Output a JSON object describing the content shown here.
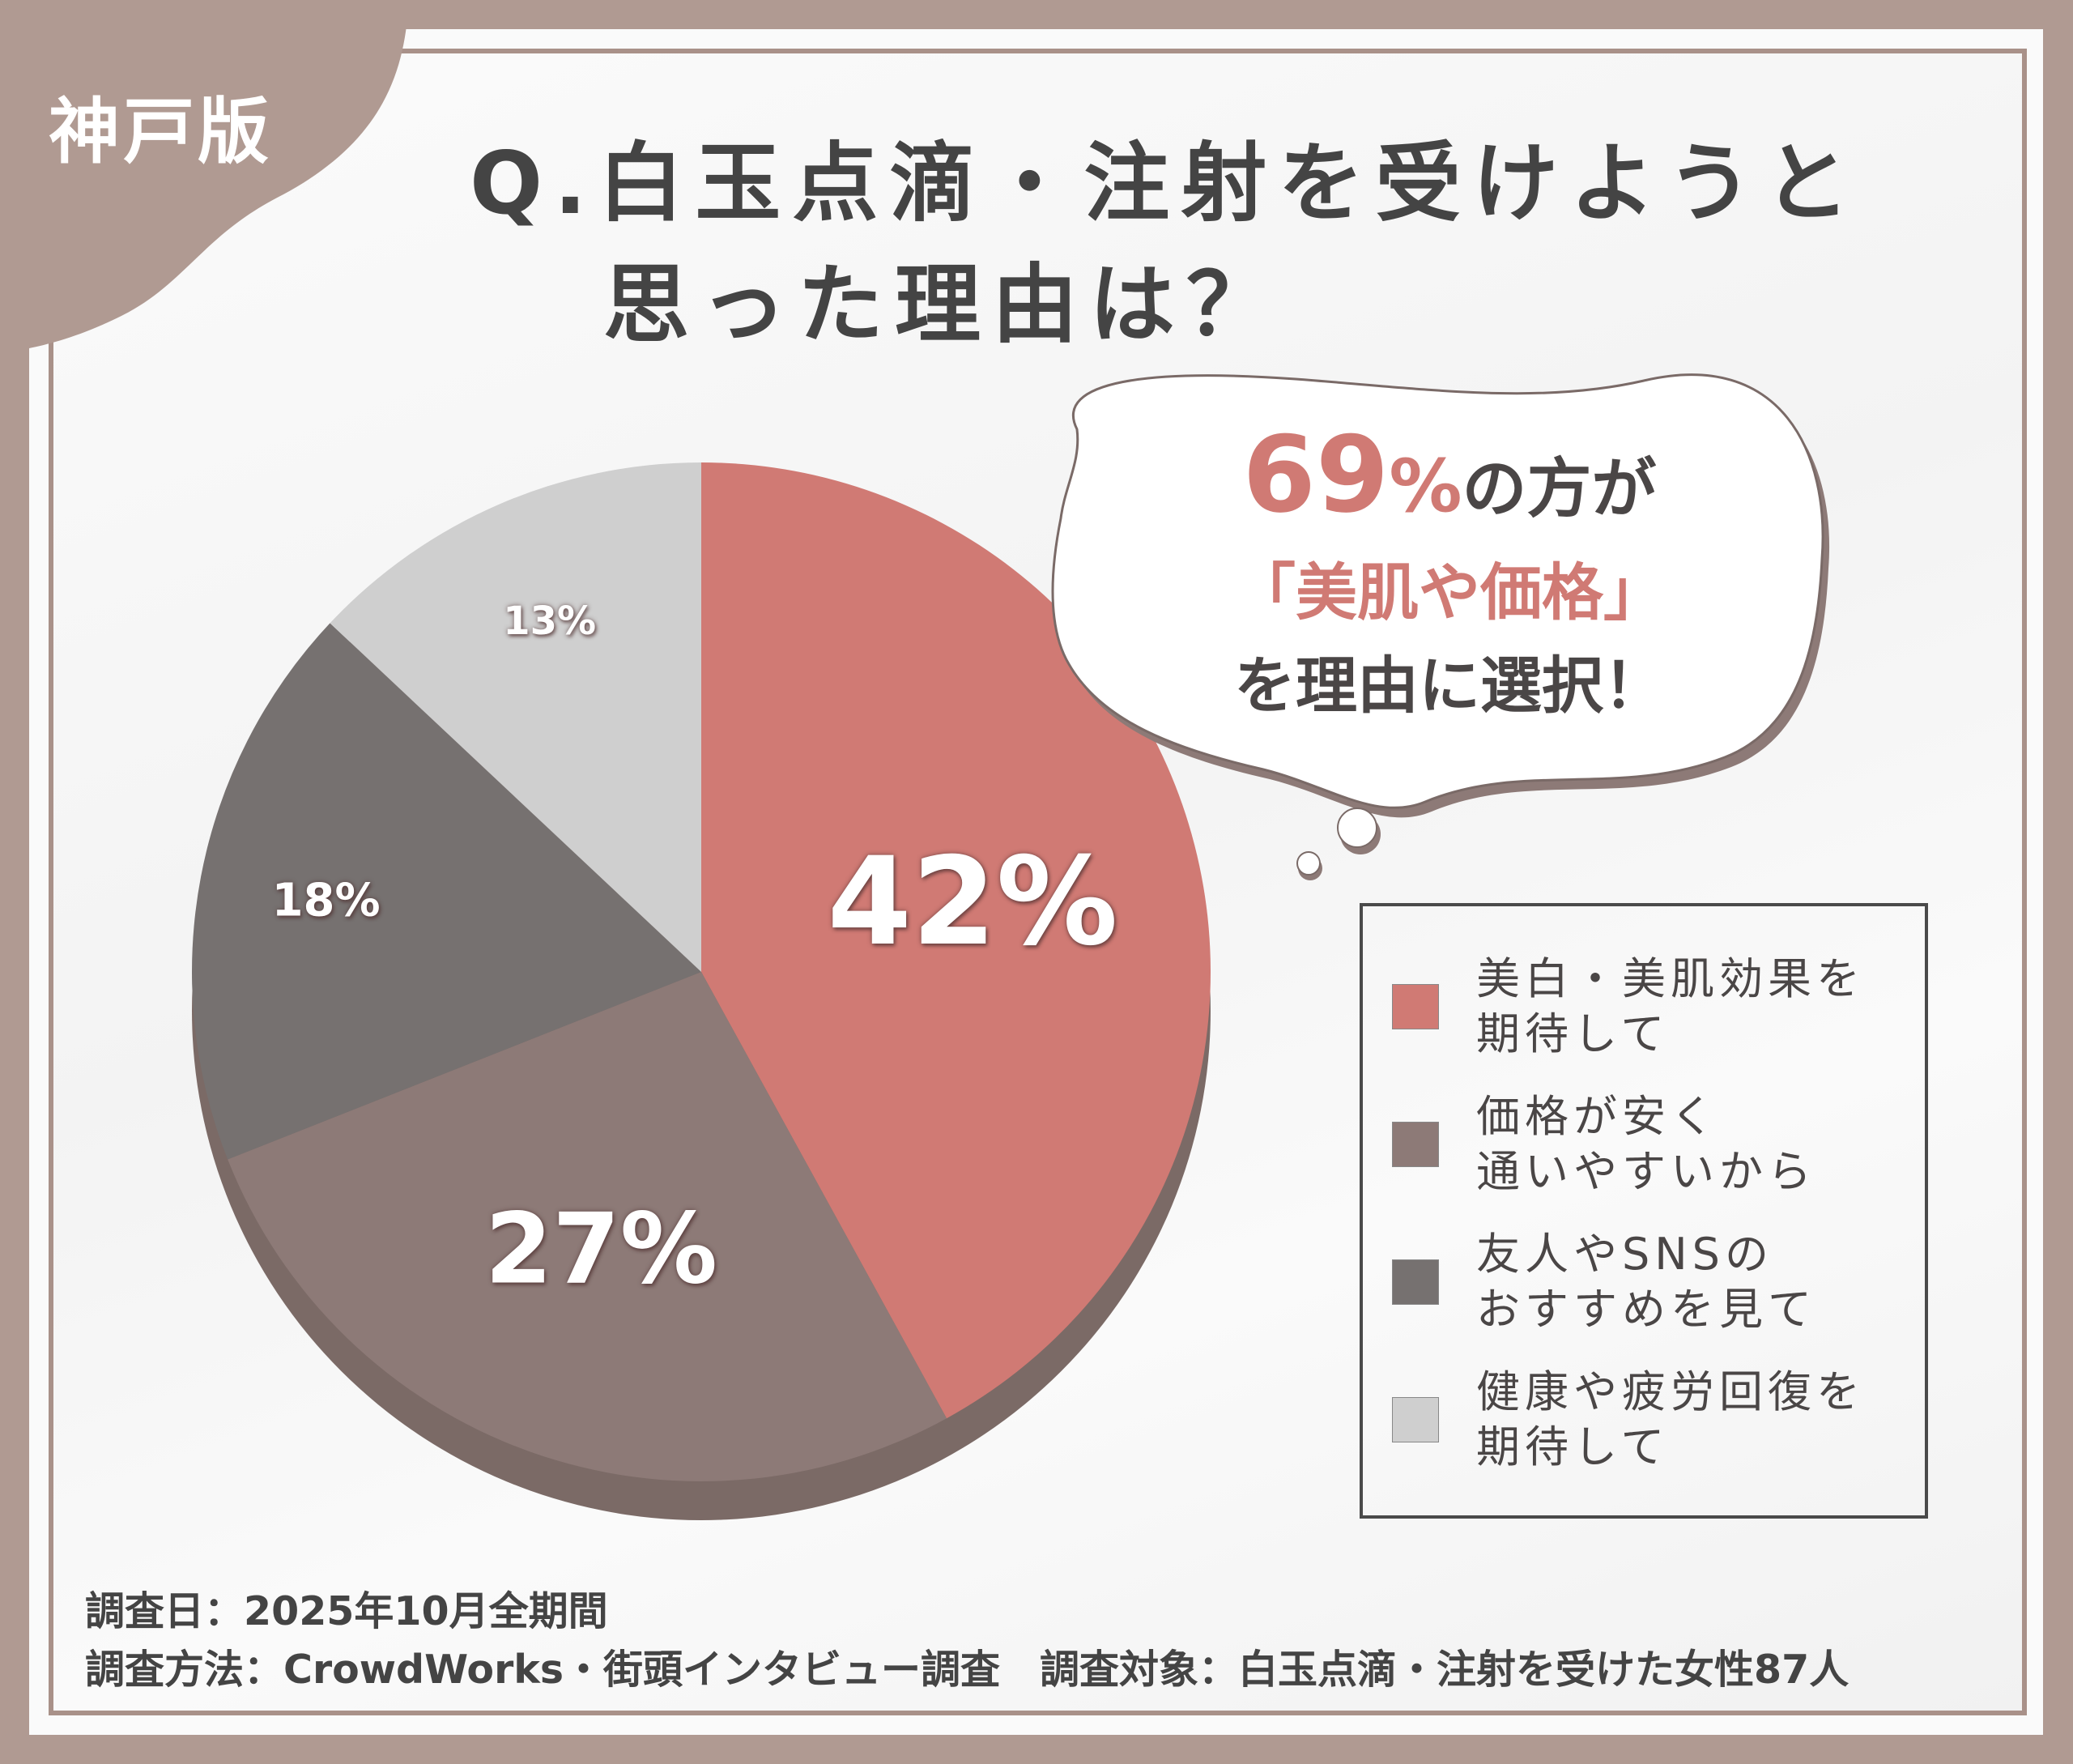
{
  "badge": "神戸版",
  "title": {
    "line1": "Q.白玉点滴・注射を受けようと",
    "line2": "思った理由は？"
  },
  "callout": {
    "percent": "69",
    "percent_sign": "%",
    "line1_rest": "の方が",
    "line2": "「美肌や価格」",
    "line3": "を理由に選択！"
  },
  "colors": {
    "background": "#b09a92",
    "accent": "#d07a74",
    "text": "#4a4646"
  },
  "chart_data": {
    "type": "pie",
    "start": "12 o'clock, clockwise",
    "categories": [
      "美白・美肌効果を\n期待して",
      "価格が安く\n通いやすいから",
      "友人やSNSの\nおすすめを見て",
      "健康や疲労回復を\n期待して"
    ],
    "values": [
      42,
      27,
      18,
      13
    ],
    "data_labels": [
      "42%",
      "27%",
      "18%",
      "13%"
    ],
    "colors": [
      "#d07a74",
      "#8d7a77",
      "#767170",
      "#cfcfcf"
    ],
    "legend": "right"
  },
  "footer": {
    "line1": "調査日：2025年10月全期間",
    "line2": "調査方法：CrowdWorks・街頭インタビュー調査　調査対象：白玉点滴・注射を受けた女性87人"
  }
}
